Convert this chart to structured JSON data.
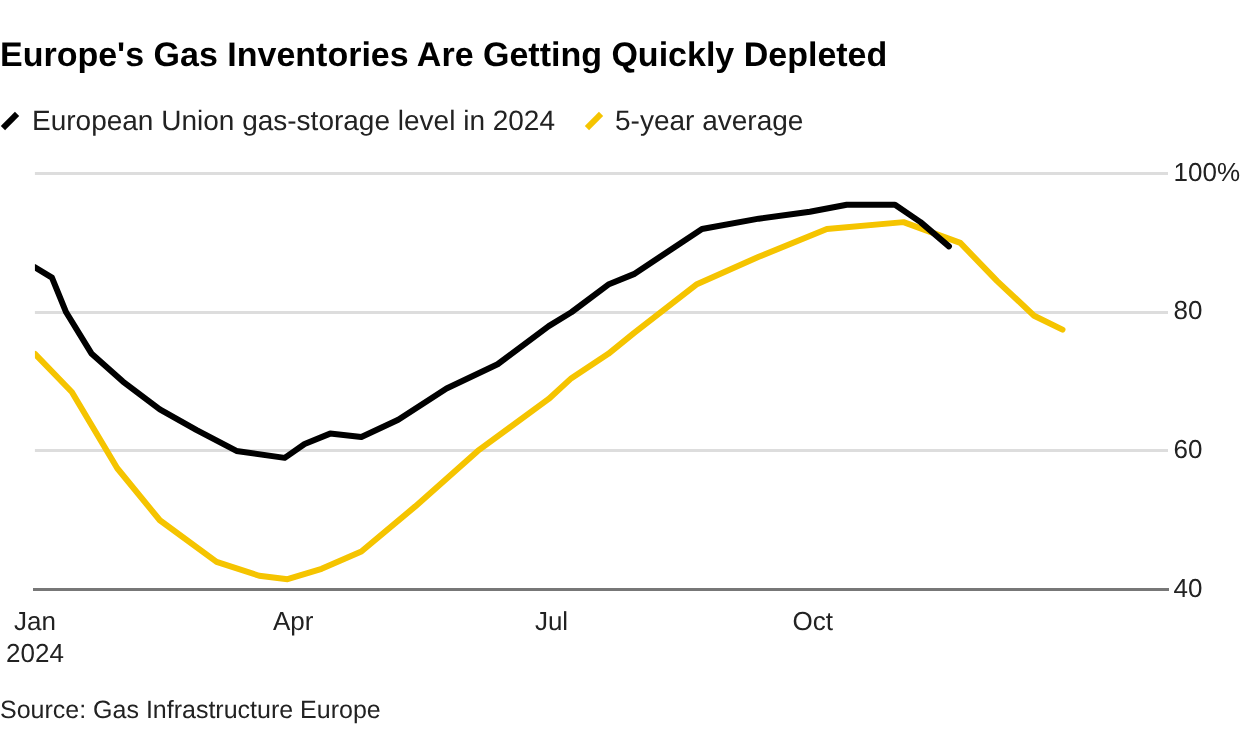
{
  "chart_data": {
    "type": "line",
    "title": "Europe's Gas Inventories Are Getting Quickly Depleted",
    "series": [
      {
        "name": "European Union gas-storage level in 2024",
        "color": "#000000",
        "x": [
          "2024-01-01",
          "2024-01-07",
          "2024-01-12",
          "2024-01-21",
          "2024-02-01",
          "2024-02-14",
          "2024-02-27",
          "2024-03-12",
          "2024-03-29",
          "2024-04-05",
          "2024-04-14",
          "2024-04-25",
          "2024-05-08",
          "2024-05-25",
          "2024-06-12",
          "2024-06-30",
          "2024-07-08",
          "2024-07-21",
          "2024-07-30",
          "2024-08-23",
          "2024-09-12",
          "2024-09-30",
          "2024-10-13",
          "2024-10-30",
          "2024-11-08",
          "2024-11-18"
        ],
        "values": [
          86.5,
          85,
          80,
          74,
          70,
          66,
          63,
          60,
          59,
          61,
          62.5,
          62,
          64.5,
          69,
          72.5,
          78,
          80,
          84,
          85.5,
          92,
          93.5,
          94.5,
          95.5,
          95.5,
          93,
          89.5
        ]
      },
      {
        "name": "5-year average",
        "color": "#f5c400",
        "x": [
          "2024-01-01",
          "2024-01-14",
          "2024-01-30",
          "2024-02-14",
          "2024-03-05",
          "2024-03-20",
          "2024-03-30",
          "2024-04-11",
          "2024-04-25",
          "2024-05-14",
          "2024-06-05",
          "2024-06-30",
          "2024-07-08",
          "2024-07-21",
          "2024-07-30",
          "2024-08-21",
          "2024-09-12",
          "2024-10-06",
          "2024-11-02",
          "2024-11-22",
          "2024-12-05",
          "2024-12-18",
          "2024-12-28"
        ],
        "values": [
          74,
          68.5,
          57.5,
          50,
          44,
          42,
          41.5,
          43,
          45.5,
          52,
          60,
          67.5,
          70.5,
          74,
          77,
          84,
          88,
          92,
          93,
          90,
          84.5,
          79.5,
          77.5
        ]
      }
    ],
    "xlim": [
      "2024-01-01",
      "2025-02-03"
    ],
    "xticks": [
      {
        "value": "2024-01-01",
        "label": "Jan\n2024"
      },
      {
        "value": "2024-04-01",
        "label": "Apr"
      },
      {
        "value": "2024-07-01",
        "label": "Jul"
      },
      {
        "value": "2024-10-01",
        "label": "Oct"
      }
    ],
    "ylim": [
      40,
      100
    ],
    "yticks": [
      40,
      60,
      80,
      {
        "value": 100,
        "label": "100%"
      }
    ],
    "grid": "y",
    "legend": "top left",
    "marker": "none",
    "line_style": "solid",
    "annotations": [
      "Source: Gas Infrastructure Europe"
    ]
  }
}
